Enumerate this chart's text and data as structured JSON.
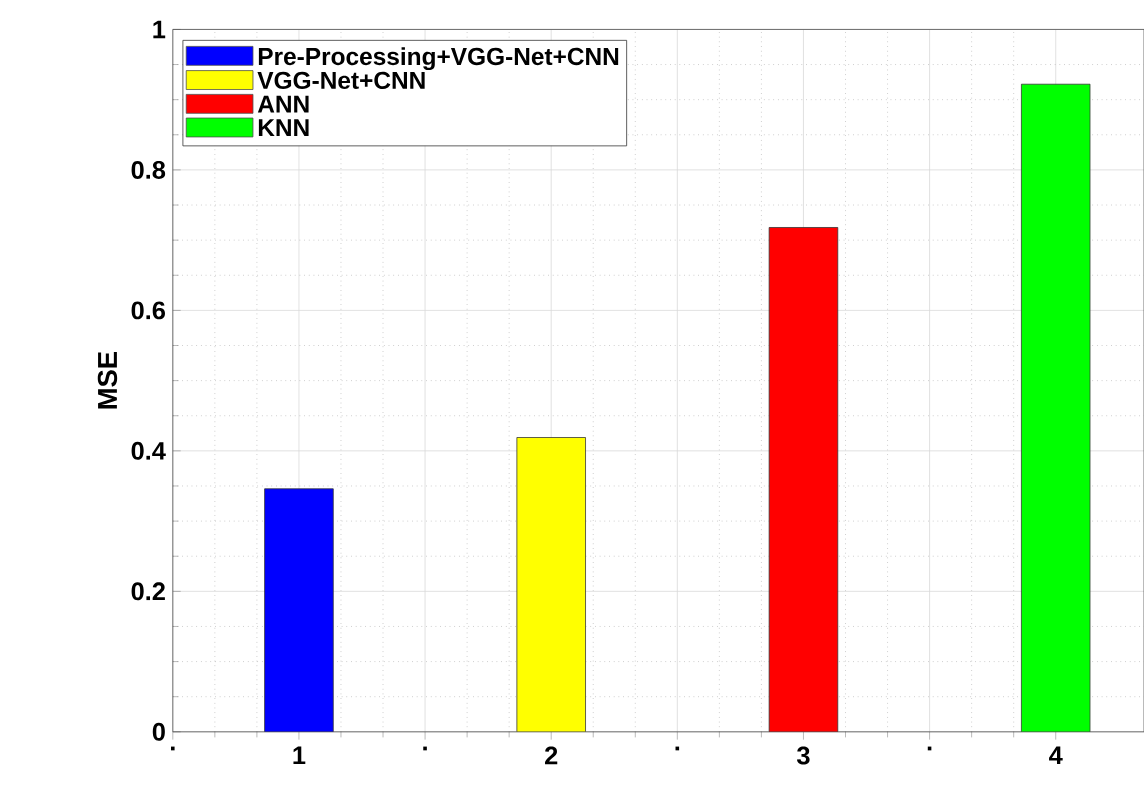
{
  "chart_data": {
    "type": "bar",
    "ylabel": "MSE",
    "series": [
      {
        "name": "Pre-Processing+VGG-Net+CNN",
        "color": "#0000ff",
        "x": [
          1
        ],
        "values": [
          0.346
        ]
      },
      {
        "name": "VGG-Net+CNN",
        "color": "#ffff00",
        "x": [
          2
        ],
        "values": [
          0.419
        ]
      },
      {
        "name": "ANN",
        "color": "#ff0000",
        "x": [
          3
        ],
        "values": [
          0.718
        ]
      },
      {
        "name": "KNN",
        "color": "#00ff00",
        "x": [
          4
        ],
        "values": [
          0.922
        ]
      }
    ],
    "xlim": [
      0.5,
      4.35
    ],
    "xticks": [
      {
        "value": 0.5,
        "label": "."
      },
      1,
      {
        "value": 1.5,
        "label": "."
      },
      2,
      {
        "value": 2.5,
        "label": "."
      },
      3,
      {
        "value": 3.5,
        "label": "."
      },
      4
    ],
    "ylim": [
      0,
      1
    ],
    "yticks": [
      0,
      0.2,
      0.4,
      0.6,
      0.8,
      1
    ],
    "grid": true,
    "legend": "top left"
  }
}
